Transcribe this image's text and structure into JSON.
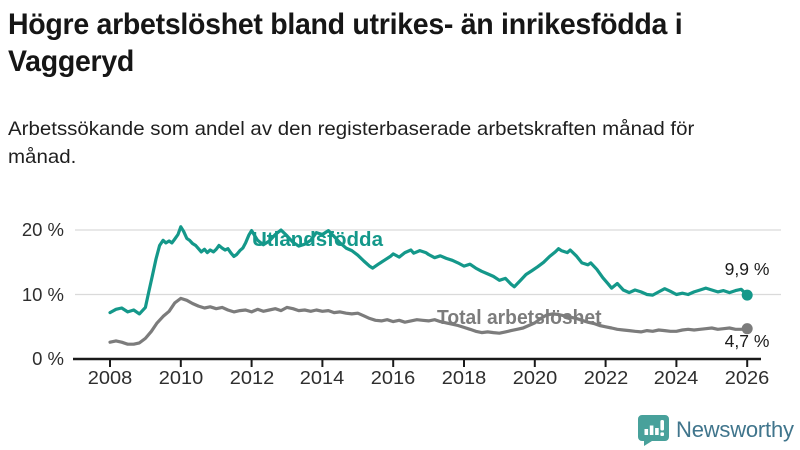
{
  "header": {
    "title": "Högre arbetslöshet bland utrikes- än inrikesfödda i Vaggeryd",
    "subtitle": "Arbetssökande som andel av den registerbaserade arbetskraften månad för månad."
  },
  "chart_data": {
    "type": "line",
    "title": "",
    "xlabel": "",
    "ylabel": "",
    "grid": "horizontal",
    "legend_position": "inline-labels",
    "x_axis": {
      "ticks": [
        2008,
        2010,
        2012,
        2014,
        2016,
        2018,
        2020,
        2022,
        2024,
        2026
      ],
      "range": [
        2008,
        2026.2
      ]
    },
    "y_axis": {
      "unit": "%",
      "range": [
        0,
        22
      ],
      "ticks": [
        {
          "label": "0 %",
          "value": 0
        },
        {
          "label": "10 %",
          "value": 10
        },
        {
          "label": "20 %",
          "value": 20
        }
      ]
    },
    "series": [
      {
        "name": "Utlandsfödda",
        "color": "#14988a",
        "end_label": "9,9 %",
        "end_value": 9.9,
        "points": [
          [
            2008.0,
            7.2
          ],
          [
            2008.17,
            7.7
          ],
          [
            2008.33,
            7.9
          ],
          [
            2008.5,
            7.3
          ],
          [
            2008.67,
            7.6
          ],
          [
            2008.83,
            7.0
          ],
          [
            2009.0,
            8.0
          ],
          [
            2009.1,
            10.5
          ],
          [
            2009.2,
            13.0
          ],
          [
            2009.3,
            15.5
          ],
          [
            2009.4,
            17.6
          ],
          [
            2009.5,
            18.4
          ],
          [
            2009.58,
            18.0
          ],
          [
            2009.67,
            18.3
          ],
          [
            2009.75,
            18.0
          ],
          [
            2009.83,
            18.6
          ],
          [
            2009.92,
            19.3
          ],
          [
            2010.0,
            20.5
          ],
          [
            2010.08,
            19.8
          ],
          [
            2010.17,
            18.7
          ],
          [
            2010.25,
            18.4
          ],
          [
            2010.33,
            17.9
          ],
          [
            2010.42,
            17.6
          ],
          [
            2010.5,
            17.1
          ],
          [
            2010.58,
            16.6
          ],
          [
            2010.67,
            17.0
          ],
          [
            2010.75,
            16.5
          ],
          [
            2010.83,
            16.9
          ],
          [
            2010.92,
            16.6
          ],
          [
            2011.0,
            17.0
          ],
          [
            2011.08,
            17.6
          ],
          [
            2011.17,
            17.2
          ],
          [
            2011.25,
            16.9
          ],
          [
            2011.33,
            17.1
          ],
          [
            2011.42,
            16.4
          ],
          [
            2011.5,
            15.9
          ],
          [
            2011.58,
            16.2
          ],
          [
            2011.67,
            16.8
          ],
          [
            2011.75,
            17.2
          ],
          [
            2011.83,
            18.0
          ],
          [
            2011.92,
            19.2
          ],
          [
            2012.0,
            19.9
          ],
          [
            2012.17,
            18.4
          ],
          [
            2012.33,
            17.7
          ],
          [
            2012.5,
            18.3
          ],
          [
            2012.67,
            19.3
          ],
          [
            2012.83,
            20.0
          ],
          [
            2013.0,
            19.1
          ],
          [
            2013.17,
            18.1
          ],
          [
            2013.33,
            17.5
          ],
          [
            2013.5,
            17.8
          ],
          [
            2013.67,
            18.4
          ],
          [
            2013.83,
            19.6
          ],
          [
            2014.0,
            19.3
          ],
          [
            2014.17,
            19.9
          ],
          [
            2014.33,
            19.0
          ],
          [
            2014.5,
            18.0
          ],
          [
            2014.67,
            17.2
          ],
          [
            2014.83,
            16.8
          ],
          [
            2015.0,
            16.1
          ],
          [
            2015.17,
            15.2
          ],
          [
            2015.33,
            14.4
          ],
          [
            2015.42,
            14.1
          ],
          [
            2015.58,
            14.7
          ],
          [
            2015.75,
            15.3
          ],
          [
            2015.92,
            15.9
          ],
          [
            2016.0,
            16.3
          ],
          [
            2016.17,
            15.8
          ],
          [
            2016.33,
            16.5
          ],
          [
            2016.5,
            16.9
          ],
          [
            2016.58,
            16.4
          ],
          [
            2016.75,
            16.8
          ],
          [
            2016.92,
            16.5
          ],
          [
            2017.0,
            16.2
          ],
          [
            2017.17,
            15.7
          ],
          [
            2017.33,
            16.0
          ],
          [
            2017.5,
            15.6
          ],
          [
            2017.67,
            15.3
          ],
          [
            2017.83,
            14.9
          ],
          [
            2018.0,
            14.4
          ],
          [
            2018.17,
            14.7
          ],
          [
            2018.33,
            14.1
          ],
          [
            2018.5,
            13.6
          ],
          [
            2018.67,
            13.2
          ],
          [
            2018.83,
            12.8
          ],
          [
            2019.0,
            12.2
          ],
          [
            2019.17,
            12.5
          ],
          [
            2019.33,
            11.6
          ],
          [
            2019.42,
            11.2
          ],
          [
            2019.58,
            12.1
          ],
          [
            2019.75,
            13.1
          ],
          [
            2019.92,
            13.7
          ],
          [
            2020.08,
            14.3
          ],
          [
            2020.25,
            15.0
          ],
          [
            2020.42,
            15.9
          ],
          [
            2020.58,
            16.6
          ],
          [
            2020.67,
            17.1
          ],
          [
            2020.75,
            16.8
          ],
          [
            2020.92,
            16.5
          ],
          [
            2021.0,
            16.9
          ],
          [
            2021.17,
            16.0
          ],
          [
            2021.33,
            14.9
          ],
          [
            2021.5,
            14.6
          ],
          [
            2021.58,
            14.9
          ],
          [
            2021.75,
            13.9
          ],
          [
            2021.92,
            12.6
          ],
          [
            2022.08,
            11.6
          ],
          [
            2022.17,
            11.0
          ],
          [
            2022.33,
            11.7
          ],
          [
            2022.5,
            10.7
          ],
          [
            2022.67,
            10.3
          ],
          [
            2022.83,
            10.7
          ],
          [
            2023.0,
            10.4
          ],
          [
            2023.17,
            10.0
          ],
          [
            2023.33,
            9.9
          ],
          [
            2023.5,
            10.4
          ],
          [
            2023.67,
            10.9
          ],
          [
            2023.83,
            10.5
          ],
          [
            2024.0,
            10.0
          ],
          [
            2024.17,
            10.2
          ],
          [
            2024.33,
            10.0
          ],
          [
            2024.5,
            10.4
          ],
          [
            2024.67,
            10.7
          ],
          [
            2024.83,
            11.0
          ],
          [
            2025.0,
            10.7
          ],
          [
            2025.17,
            10.4
          ],
          [
            2025.33,
            10.6
          ],
          [
            2025.5,
            10.3
          ],
          [
            2025.67,
            10.6
          ],
          [
            2025.83,
            10.8
          ],
          [
            2026.0,
            9.9
          ]
        ]
      },
      {
        "name": "Total arbetslöshet",
        "color": "#7c7c7c",
        "end_label": "4,7 %",
        "end_value": 4.7,
        "points": [
          [
            2008.0,
            2.6
          ],
          [
            2008.17,
            2.8
          ],
          [
            2008.33,
            2.6
          ],
          [
            2008.5,
            2.3
          ],
          [
            2008.67,
            2.3
          ],
          [
            2008.83,
            2.5
          ],
          [
            2009.0,
            3.2
          ],
          [
            2009.17,
            4.3
          ],
          [
            2009.33,
            5.6
          ],
          [
            2009.5,
            6.6
          ],
          [
            2009.67,
            7.4
          ],
          [
            2009.83,
            8.7
          ],
          [
            2010.0,
            9.4
          ],
          [
            2010.17,
            9.1
          ],
          [
            2010.33,
            8.6
          ],
          [
            2010.5,
            8.2
          ],
          [
            2010.67,
            7.9
          ],
          [
            2010.83,
            8.1
          ],
          [
            2011.0,
            7.8
          ],
          [
            2011.17,
            8.0
          ],
          [
            2011.33,
            7.6
          ],
          [
            2011.5,
            7.3
          ],
          [
            2011.67,
            7.5
          ],
          [
            2011.83,
            7.6
          ],
          [
            2012.0,
            7.3
          ],
          [
            2012.17,
            7.7
          ],
          [
            2012.33,
            7.4
          ],
          [
            2012.5,
            7.6
          ],
          [
            2012.67,
            7.8
          ],
          [
            2012.83,
            7.5
          ],
          [
            2013.0,
            8.0
          ],
          [
            2013.17,
            7.8
          ],
          [
            2013.33,
            7.5
          ],
          [
            2013.5,
            7.6
          ],
          [
            2013.67,
            7.4
          ],
          [
            2013.83,
            7.6
          ],
          [
            2014.0,
            7.4
          ],
          [
            2014.17,
            7.5
          ],
          [
            2014.33,
            7.2
          ],
          [
            2014.5,
            7.3
          ],
          [
            2014.67,
            7.1
          ],
          [
            2014.83,
            7.0
          ],
          [
            2015.0,
            7.1
          ],
          [
            2015.17,
            6.7
          ],
          [
            2015.33,
            6.3
          ],
          [
            2015.5,
            6.0
          ],
          [
            2015.67,
            5.9
          ],
          [
            2015.83,
            6.1
          ],
          [
            2016.0,
            5.8
          ],
          [
            2016.17,
            6.0
          ],
          [
            2016.33,
            5.7
          ],
          [
            2016.5,
            5.9
          ],
          [
            2016.67,
            6.1
          ],
          [
            2016.83,
            6.0
          ],
          [
            2017.0,
            5.9
          ],
          [
            2017.17,
            6.1
          ],
          [
            2017.33,
            5.8
          ],
          [
            2017.5,
            5.6
          ],
          [
            2017.67,
            5.4
          ],
          [
            2017.83,
            5.2
          ],
          [
            2018.0,
            4.9
          ],
          [
            2018.17,
            4.6
          ],
          [
            2018.33,
            4.3
          ],
          [
            2018.5,
            4.1
          ],
          [
            2018.67,
            4.2
          ],
          [
            2018.83,
            4.1
          ],
          [
            2019.0,
            4.0
          ],
          [
            2019.17,
            4.2
          ],
          [
            2019.33,
            4.4
          ],
          [
            2019.5,
            4.6
          ],
          [
            2019.67,
            4.8
          ],
          [
            2019.83,
            5.2
          ],
          [
            2020.0,
            5.6
          ],
          [
            2020.17,
            6.3
          ],
          [
            2020.33,
            6.8
          ],
          [
            2020.5,
            7.0
          ],
          [
            2020.67,
            6.9
          ],
          [
            2020.83,
            6.7
          ],
          [
            2021.0,
            6.5
          ],
          [
            2021.17,
            6.3
          ],
          [
            2021.33,
            6.0
          ],
          [
            2021.5,
            5.7
          ],
          [
            2021.67,
            5.5
          ],
          [
            2021.83,
            5.2
          ],
          [
            2022.0,
            5.0
          ],
          [
            2022.17,
            4.8
          ],
          [
            2022.33,
            4.6
          ],
          [
            2022.5,
            4.5
          ],
          [
            2022.67,
            4.4
          ],
          [
            2022.83,
            4.3
          ],
          [
            2023.0,
            4.2
          ],
          [
            2023.17,
            4.4
          ],
          [
            2023.33,
            4.3
          ],
          [
            2023.5,
            4.5
          ],
          [
            2023.67,
            4.4
          ],
          [
            2023.83,
            4.3
          ],
          [
            2024.0,
            4.3
          ],
          [
            2024.17,
            4.5
          ],
          [
            2024.33,
            4.6
          ],
          [
            2024.5,
            4.5
          ],
          [
            2024.67,
            4.6
          ],
          [
            2024.83,
            4.7
          ],
          [
            2025.0,
            4.8
          ],
          [
            2025.17,
            4.6
          ],
          [
            2025.33,
            4.7
          ],
          [
            2025.5,
            4.8
          ],
          [
            2025.67,
            4.6
          ],
          [
            2025.83,
            4.6
          ],
          [
            2026.0,
            4.7
          ]
        ]
      }
    ]
  },
  "footer": {
    "brand": "Newsworthy",
    "logo_icon": "bar-chart-speech-bubble"
  },
  "colors": {
    "accent_teal": "#14988a",
    "series_gray": "#7c7c7c",
    "gridline": "#dadada",
    "axis": "#1a1a1a",
    "logo_teal": "#48a19b",
    "logo_text": "#40758c"
  }
}
